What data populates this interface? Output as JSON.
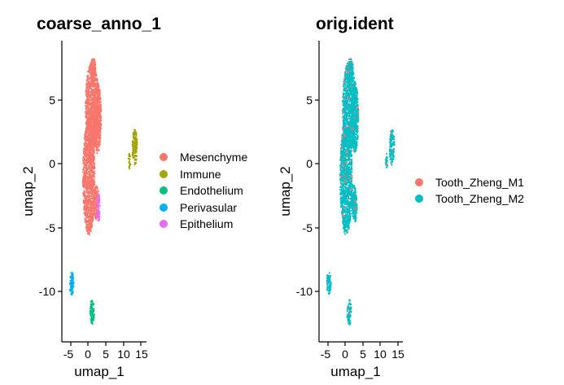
{
  "chart_data": [
    {
      "type": "scatter",
      "title": "coarse_anno_1",
      "xlabel": "umap_1",
      "ylabel": "umap_2",
      "xlim": [
        -7,
        15.5
      ],
      "ylim": [
        -14,
        9.5
      ],
      "xticks": [
        "-5",
        "0",
        "5",
        "10",
        "15"
      ],
      "yticks": [
        "5",
        "0",
        "-5",
        "-10"
      ],
      "grid": false,
      "legend_position": "right",
      "series": [
        {
          "name": "Mesenchyme",
          "color": "#F8766D",
          "clusters": [
            {
              "cx": 1.2,
              "cy": 4.5,
              "rx": 1.9,
              "ry": 3.5
            },
            {
              "cx": 0.3,
              "cy": -1.0,
              "rx": 1.7,
              "ry": 4.6
            },
            {
              "cx": 2.7,
              "cy": 3.6,
              "rx": 1.1,
              "ry": 2.8
            },
            {
              "cx": 2.4,
              "cy": -3.0,
              "rx": 0.8,
              "ry": 1.4
            },
            {
              "cx": 1.5,
              "cy": 7.3,
              "rx": 0.8,
              "ry": 1.0
            }
          ]
        },
        {
          "name": "Immune",
          "color": "#A3A500",
          "clusters": [
            {
              "cx": 13.3,
              "cy": 1.3,
              "rx": 0.7,
              "ry": 1.4
            },
            {
              "cx": 11.8,
              "cy": 0.2,
              "rx": 0.3,
              "ry": 0.6
            }
          ]
        },
        {
          "name": "Endothelium",
          "color": "#00BF7D",
          "clusters": [
            {
              "cx": 1.2,
              "cy": -11.7,
              "rx": 0.6,
              "ry": 1.0
            }
          ]
        },
        {
          "name": "Perivasular",
          "color": "#00B0F6",
          "clusters": [
            {
              "cx": -4.6,
              "cy": -9.4,
              "rx": 0.6,
              "ry": 0.9
            }
          ]
        },
        {
          "name": "Epithelium",
          "color": "#E76BF3",
          "clusters": [
            {
              "cx": 3.0,
              "cy": -3.5,
              "rx": 0.4,
              "ry": 1.1
            }
          ]
        }
      ]
    },
    {
      "type": "scatter",
      "title": "orig.ident",
      "xlabel": "umap_1",
      "ylabel": "umap_2",
      "xlim": [
        -7,
        15.5
      ],
      "ylim": [
        -14,
        9.5
      ],
      "xticks": [
        "-5",
        "0",
        "5",
        "10",
        "15"
      ],
      "yticks": [
        "5",
        "0",
        "-5",
        "-10"
      ],
      "grid": false,
      "legend_position": "right",
      "series": [
        {
          "name": "Tooth_Zheng_M1",
          "color": "#F8766D",
          "share": 0.06
        },
        {
          "name": "Tooth_Zheng_M2",
          "color": "#00BFC4",
          "share": 0.94
        }
      ]
    }
  ]
}
